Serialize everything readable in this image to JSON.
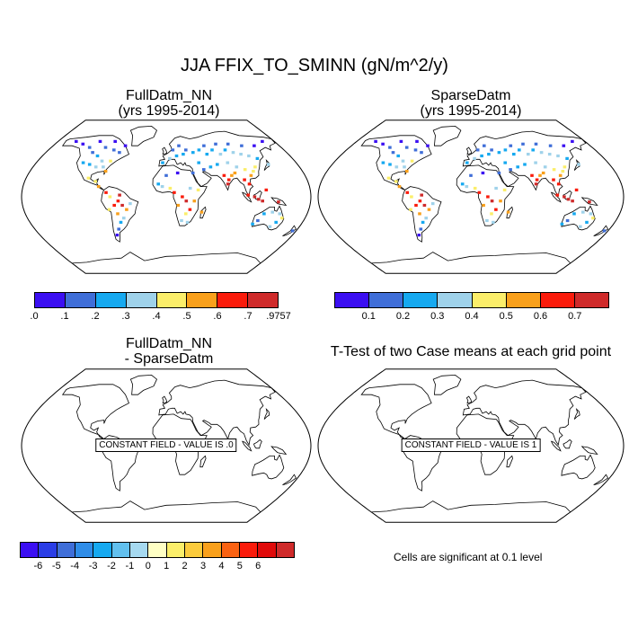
{
  "main_title": "JJA FFIX_TO_SMINN (gN/m^2/y)",
  "panels": [
    {
      "id": "full",
      "title_line1": "FullDatm_NN",
      "title_line2": "(yrs 1995-2014)"
    },
    {
      "id": "sparse",
      "title_line1": "SparseDatm",
      "title_line2": "(yrs 1995-2014)"
    },
    {
      "id": "diff",
      "title_line1": "FullDatm_NN",
      "title_line2": "- SparseDatm",
      "constant_label": "CONSTANT FIELD - VALUE IS .0"
    },
    {
      "id": "ttest",
      "title_line1": "T-Test of two Case means at each grid point",
      "title_line2": "",
      "constant_label": "CONSTANT FIELD - VALUE IS 1"
    }
  ],
  "colorbars": {
    "full": {
      "colors": [
        "#3b0ff2",
        "#3f6ed8",
        "#16a9f0",
        "#9fd2ea",
        "#fbee6a",
        "#f9a01b",
        "#fa1b0b",
        "#cf2a2a"
      ],
      "labels": [
        ".0",
        ".1",
        ".2",
        ".3",
        ".4",
        ".5",
        ".6",
        ".7",
        ".9757"
      ]
    },
    "sparse": {
      "colors": [
        "#3b0ff2",
        "#3f6ed8",
        "#16a9f0",
        "#9fd2ea",
        "#fbee6a",
        "#f9a01b",
        "#fa1b0b",
        "#cf2a2a"
      ],
      "labels": [
        "0.1",
        "0.2",
        "0.3",
        "0.4",
        "0.5",
        "0.6",
        "0.7"
      ]
    },
    "diff": {
      "colors": [
        "#3b0ff2",
        "#2a3de6",
        "#3f6ed8",
        "#2f8de8",
        "#16a9f0",
        "#62c0ee",
        "#a6d9f0",
        "#ffffc4",
        "#fbee6a",
        "#fbcb3c",
        "#f9a01b",
        "#fa6212",
        "#fa1b0b",
        "#e00a0a",
        "#cf2a2a"
      ],
      "labels": [
        "-6",
        "-5",
        "-4",
        "-3",
        "-2",
        "-1",
        "0",
        "1",
        "2",
        "3",
        "4",
        "5",
        "6"
      ]
    }
  },
  "significance_note": "Cells are significant at 0.1 level",
  "map_data": {
    "projection": "robinson",
    "grid_points_full": [
      {
        "lon": -60,
        "lat": -5,
        "value": 0.65
      },
      {
        "lon": -55,
        "lat": -10,
        "value": 0.7
      },
      {
        "lon": -65,
        "lat": -10,
        "value": 0.6
      },
      {
        "lon": -50,
        "lat": -15,
        "value": 0.55
      },
      {
        "lon": -70,
        "lat": 0,
        "value": 0.45
      },
      {
        "lon": -62,
        "lat": -20,
        "value": 0.5
      },
      {
        "lon": -58,
        "lat": 2,
        "value": 0.72
      },
      {
        "lon": -45,
        "lat": -8,
        "value": 0.35
      },
      {
        "lon": -72,
        "lat": -15,
        "value": 0.4
      },
      {
        "lon": -55,
        "lat": -25,
        "value": 0.3
      },
      {
        "lon": -60,
        "lat": -30,
        "value": 0.25
      },
      {
        "lon": -65,
        "lat": -38,
        "value": 0.15
      },
      {
        "lon": -70,
        "lat": -45,
        "value": 0.05
      },
      {
        "lon": -75,
        "lat": 5,
        "value": 0.6
      },
      {
        "lon": -85,
        "lat": 12,
        "value": 0.55
      },
      {
        "lon": -90,
        "lat": 18,
        "value": 0.45
      },
      {
        "lon": -100,
        "lat": 22,
        "value": 0.4
      },
      {
        "lon": -80,
        "lat": 30,
        "value": 0.5
      },
      {
        "lon": -85,
        "lat": 35,
        "value": 0.35
      },
      {
        "lon": -95,
        "lat": 35,
        "value": 0.3
      },
      {
        "lon": -105,
        "lat": 38,
        "value": 0.25
      },
      {
        "lon": -115,
        "lat": 40,
        "value": 0.2
      },
      {
        "lon": -90,
        "lat": 42,
        "value": 0.3
      },
      {
        "lon": -78,
        "lat": 42,
        "value": 0.45
      },
      {
        "lon": -100,
        "lat": 48,
        "value": 0.2
      },
      {
        "lon": -110,
        "lat": 52,
        "value": 0.15
      },
      {
        "lon": -120,
        "lat": 58,
        "value": 0.1
      },
      {
        "lon": -95,
        "lat": 58,
        "value": 0.1
      },
      {
        "lon": -135,
        "lat": 62,
        "value": 0.05
      },
      {
        "lon": -150,
        "lat": 65,
        "value": 0.02
      },
      {
        "lon": -80,
        "lat": 55,
        "value": 0.1
      },
      {
        "lon": -70,
        "lat": 52,
        "value": 0.15
      },
      {
        "lon": -110,
        "lat": 65,
        "value": 0.03
      },
      {
        "lon": -85,
        "lat": 65,
        "value": 0.05
      },
      {
        "lon": -65,
        "lat": 60,
        "value": 0.08
      },
      {
        "lon": 10,
        "lat": 5,
        "value": 0.6
      },
      {
        "lon": 20,
        "lat": 0,
        "value": 0.65
      },
      {
        "lon": 25,
        "lat": -5,
        "value": 0.7
      },
      {
        "lon": 15,
        "lat": -10,
        "value": 0.55
      },
      {
        "lon": 30,
        "lat": -15,
        "value": 0.6
      },
      {
        "lon": 25,
        "lat": -20,
        "value": 0.45
      },
      {
        "lon": 35,
        "lat": -5,
        "value": 0.5
      },
      {
        "lon": 5,
        "lat": 10,
        "value": 0.4
      },
      {
        "lon": -5,
        "lat": 12,
        "value": 0.3
      },
      {
        "lon": -10,
        "lat": 15,
        "value": 0.25
      },
      {
        "lon": 30,
        "lat": 10,
        "value": 0.35
      },
      {
        "lon": 40,
        "lat": 8,
        "value": 0.45
      },
      {
        "lon": 20,
        "lat": -28,
        "value": 0.3
      },
      {
        "lon": 28,
        "lat": -30,
        "value": 0.35
      },
      {
        "lon": 45,
        "lat": -18,
        "value": 0.55
      },
      {
        "lon": 0,
        "lat": 25,
        "value": 0.1
      },
      {
        "lon": 15,
        "lat": 28,
        "value": 0.05
      },
      {
        "lon": 35,
        "lat": 28,
        "value": 0.1
      },
      {
        "lon": -5,
        "lat": 40,
        "value": 0.25
      },
      {
        "lon": 5,
        "lat": 45,
        "value": 0.3
      },
      {
        "lon": 15,
        "lat": 48,
        "value": 0.25
      },
      {
        "lon": 25,
        "lat": 50,
        "value": 0.2
      },
      {
        "lon": 30,
        "lat": 55,
        "value": 0.15
      },
      {
        "lon": 40,
        "lat": 52,
        "value": 0.2
      },
      {
        "lon": 10,
        "lat": 55,
        "value": 0.15
      },
      {
        "lon": 20,
        "lat": 60,
        "value": 0.1
      },
      {
        "lon": 50,
        "lat": 55,
        "value": 0.2
      },
      {
        "lon": 60,
        "lat": 50,
        "value": 0.25
      },
      {
        "lon": 70,
        "lat": 55,
        "value": 0.2
      },
      {
        "lon": 80,
        "lat": 50,
        "value": 0.3
      },
      {
        "lon": 90,
        "lat": 55,
        "value": 0.25
      },
      {
        "lon": 100,
        "lat": 52,
        "value": 0.3
      },
      {
        "lon": 110,
        "lat": 50,
        "value": 0.35
      },
      {
        "lon": 120,
        "lat": 48,
        "value": 0.3
      },
      {
        "lon": 130,
        "lat": 45,
        "value": 0.25
      },
      {
        "lon": 60,
        "lat": 60,
        "value": 0.15
      },
      {
        "lon": 80,
        "lat": 62,
        "value": 0.1
      },
      {
        "lon": 100,
        "lat": 62,
        "value": 0.12
      },
      {
        "lon": 120,
        "lat": 60,
        "value": 0.1
      },
      {
        "lon": 140,
        "lat": 60,
        "value": 0.05
      },
      {
        "lon": 160,
        "lat": 65,
        "value": 0.03
      },
      {
        "lon": 75,
        "lat": 25,
        "value": 0.6
      },
      {
        "lon": 80,
        "lat": 20,
        "value": 0.65
      },
      {
        "lon": 85,
        "lat": 25,
        "value": 0.55
      },
      {
        "lon": 78,
        "lat": 15,
        "value": 0.7
      },
      {
        "lon": 90,
        "lat": 28,
        "value": 0.5
      },
      {
        "lon": 100,
        "lat": 20,
        "value": 0.6
      },
      {
        "lon": 105,
        "lat": 15,
        "value": 0.65
      },
      {
        "lon": 110,
        "lat": 25,
        "value": 0.5
      },
      {
        "lon": 115,
        "lat": 30,
        "value": 0.45
      },
      {
        "lon": 105,
        "lat": 32,
        "value": 0.4
      },
      {
        "lon": 95,
        "lat": 35,
        "value": 0.35
      },
      {
        "lon": 85,
        "lat": 40,
        "value": 0.3
      },
      {
        "lon": 70,
        "lat": 38,
        "value": 0.25
      },
      {
        "lon": 60,
        "lat": 35,
        "value": 0.2
      },
      {
        "lon": 50,
        "lat": 32,
        "value": 0.15
      },
      {
        "lon": 45,
        "lat": 40,
        "value": 0.2
      },
      {
        "lon": 120,
        "lat": 35,
        "value": 0.45
      },
      {
        "lon": 110,
        "lat": 0,
        "value": 0.72
      },
      {
        "lon": 115,
        "lat": -3,
        "value": 0.75
      },
      {
        "lon": 102,
        "lat": 2,
        "value": 0.68
      },
      {
        "lon": 120,
        "lat": -5,
        "value": 0.7
      },
      {
        "lon": 125,
        "lat": 8,
        "value": 0.65
      },
      {
        "lon": 140,
        "lat": -6,
        "value": 0.7
      },
      {
        "lon": 135,
        "lat": -18,
        "value": 0.3
      },
      {
        "lon": 145,
        "lat": -20,
        "value": 0.35
      },
      {
        "lon": 125,
        "lat": -20,
        "value": 0.2
      },
      {
        "lon": 120,
        "lat": -28,
        "value": 0.15
      },
      {
        "lon": 145,
        "lat": -30,
        "value": 0.25
      },
      {
        "lon": 150,
        "lat": -25,
        "value": 0.4
      },
      {
        "lon": 115,
        "lat": -32,
        "value": 0.2
      },
      {
        "lon": 140,
        "lat": -35,
        "value": 0.3
      },
      {
        "lon": 175,
        "lat": -40,
        "value": 0.15
      },
      {
        "lon": 140,
        "lat": 38,
        "value": 0.3
      }
    ]
  }
}
